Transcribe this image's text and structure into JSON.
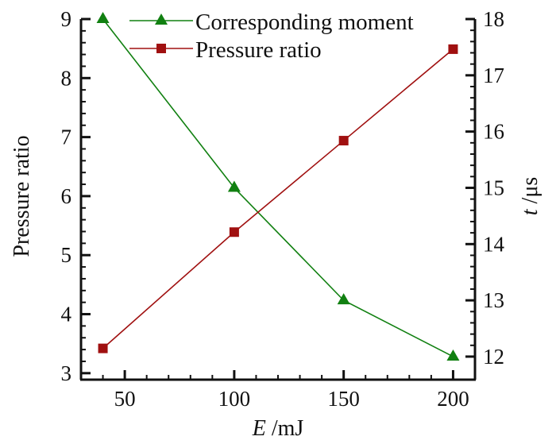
{
  "chart_data": {
    "type": "line",
    "title": "",
    "xlabel": {
      "var": "E",
      "unit": " /mJ"
    },
    "ylabel_left": "Pressure ratio",
    "ylabel_right": {
      "var": "t",
      "unit": " /μs"
    },
    "x": [
      40,
      100,
      150,
      200
    ],
    "xlim": [
      30,
      210
    ],
    "ylim_left": [
      2.89,
      9
    ],
    "ylim_right": [
      11.59,
      18
    ],
    "xticks": [
      "50",
      "100",
      "150",
      "200"
    ],
    "yticks_left": [
      "3",
      "4",
      "5",
      "6",
      "7",
      "8",
      "9"
    ],
    "yticks_right": [
      "12",
      "13",
      "14",
      "15",
      "16",
      "17",
      "18"
    ],
    "grid": false,
    "legend_placement": "top-center",
    "series": [
      {
        "name": "Corresponding moment",
        "axis": "right",
        "marker": "triangle",
        "color": "#118011",
        "values": [
          18,
          15,
          13,
          12
        ]
      },
      {
        "name": "Pressure ratio",
        "axis": "left",
        "marker": "square",
        "color": "#a01010",
        "values": [
          3.42,
          5.39,
          6.94,
          8.49
        ]
      }
    ]
  }
}
